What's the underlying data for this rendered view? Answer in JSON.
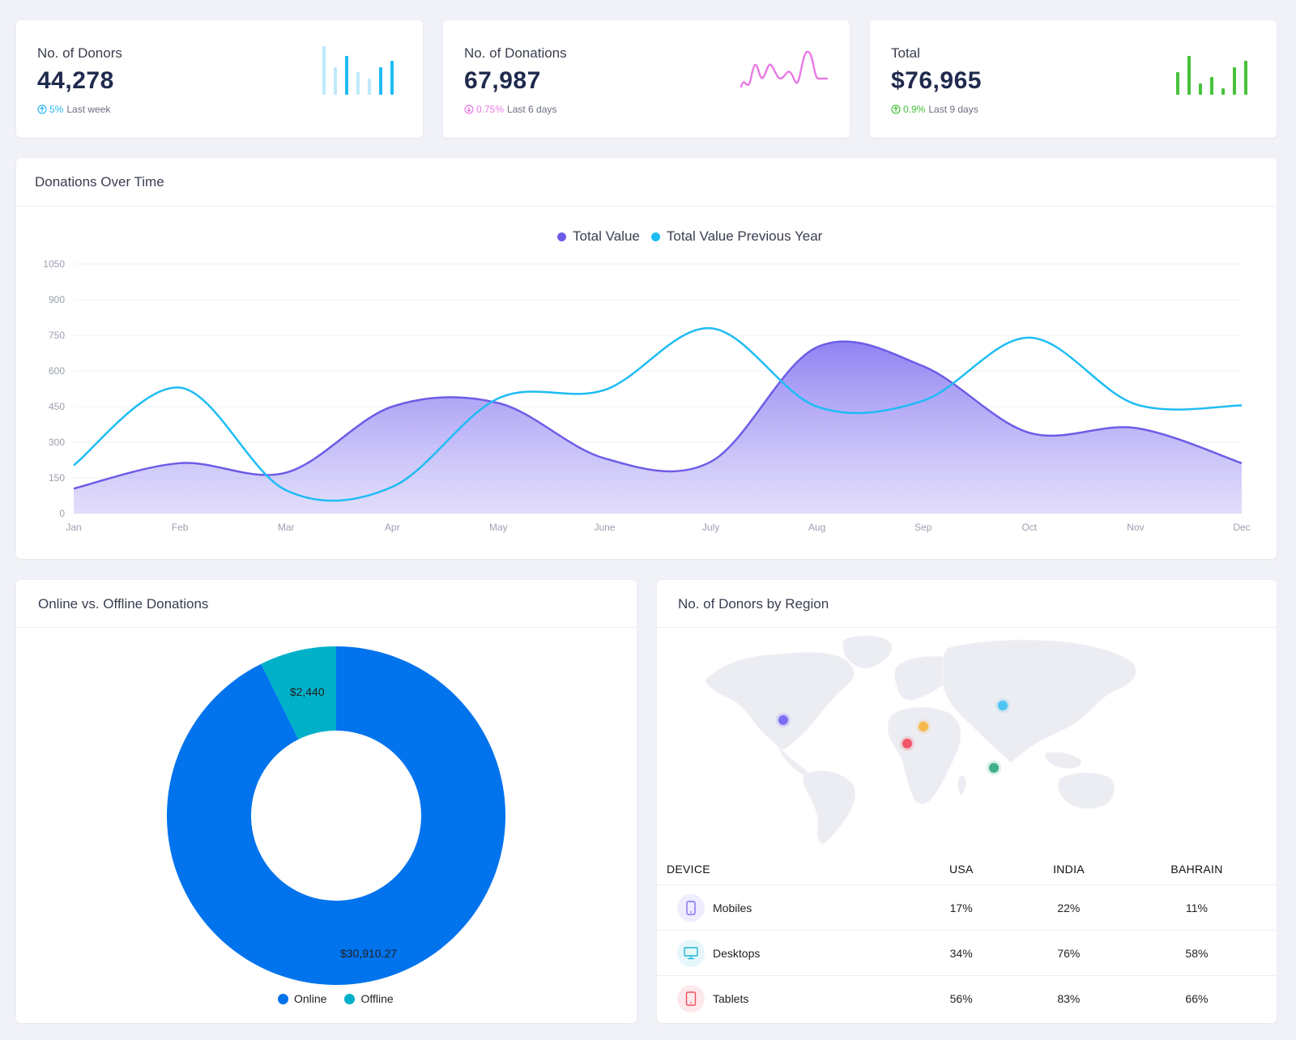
{
  "stats": [
    {
      "title": "No. of Donors",
      "value": "44,278",
      "pct": "5%",
      "period": "Last week",
      "color": "#27b6f0",
      "direction": "up"
    },
    {
      "title": "No. of Donations",
      "value": "67,987",
      "pct": "0.75%",
      "period": "Last 6 days",
      "color": "#e879e6",
      "direction": "down"
    },
    {
      "title": "Total",
      "value": "$76,965",
      "pct": "0.9%",
      "period": "Last 9 days",
      "color": "#46c23a",
      "direction": "up"
    }
  ],
  "line_panel": {
    "title": "Donations Over Time"
  },
  "donut_panel": {
    "title": "Online vs. Offline Donations"
  },
  "map_panel": {
    "title": "No. of Donors by Region",
    "markers": [
      {
        "name": "usa",
        "color": "#7b6ef6"
      },
      {
        "name": "europe",
        "color": "#f5b84a"
      },
      {
        "name": "west-africa",
        "color": "#f0556a"
      },
      {
        "name": "central-asia",
        "color": "#4fc4f2"
      },
      {
        "name": "indian-ocean",
        "color": "#3fae8a"
      }
    ]
  },
  "device_table": {
    "headers": [
      "DEVICE",
      "USA",
      "INDIA",
      "BAHRAIN"
    ],
    "rows": [
      {
        "device": "Mobiles",
        "icon": "mobile-icon",
        "icon_color": "#7b6ef6",
        "icon_bg": "#eeecfd",
        "usa": "17%",
        "india": "22%",
        "bahrain": "11%"
      },
      {
        "device": "Desktops",
        "icon": "desktop-icon",
        "icon_color": "#1fb6d6",
        "icon_bg": "#e6f7fb",
        "usa": "34%",
        "india": "76%",
        "bahrain": "58%"
      },
      {
        "device": "Tablets",
        "icon": "tablet-icon",
        "icon_color": "#ef4e5e",
        "icon_bg": "#fde9eb",
        "usa": "56%",
        "india": "83%",
        "bahrain": "66%"
      }
    ]
  },
  "chart_data": [
    {
      "type": "area",
      "x": [
        "Jan",
        "Feb",
        "Mar",
        "Apr",
        "May",
        "June",
        "July",
        "Aug",
        "Sep",
        "Oct",
        "Nov",
        "Dec"
      ],
      "ylim": [
        0,
        1050
      ],
      "yticks": [
        0,
        150,
        300,
        450,
        600,
        750,
        900,
        1050
      ],
      "grid": true,
      "legend": "top-center",
      "series": [
        {
          "name": "Total Value",
          "color": "#6c5ce7",
          "values": [
            105,
            212,
            172,
            450,
            465,
            232,
            218,
            700,
            620,
            340,
            360,
            212
          ]
        },
        {
          "name": "Total Value Previous Year",
          "color": "#1ebcf5",
          "values": [
            203,
            530,
            98,
            112,
            485,
            520,
            780,
            450,
            475,
            740,
            460,
            455
          ]
        }
      ]
    },
    {
      "type": "pie",
      "categories": [
        "Online",
        "Offline"
      ],
      "values": [
        30910.27,
        2440
      ],
      "labels": [
        "$30,910.27",
        "$2,440"
      ],
      "colors": [
        "#0073ed",
        "#00b0c8"
      ],
      "legend": "bottom-center"
    }
  ]
}
